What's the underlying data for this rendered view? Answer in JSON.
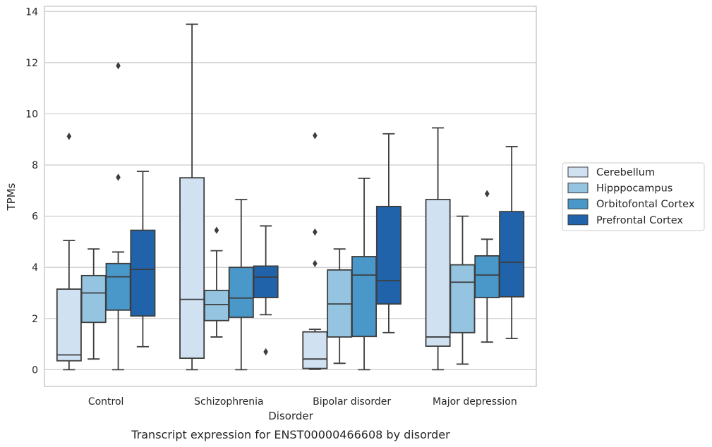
{
  "caption": "Transcript expression for ENST00000466608 by disorder",
  "chart_data": {
    "type": "box",
    "title": "",
    "xlabel": "Disorder",
    "ylabel": "TPMs",
    "ylim": [
      -0.65,
      14.2
    ],
    "yticks": [
      0,
      2,
      4,
      6,
      8,
      10,
      12,
      14
    ],
    "grid": "horizontal",
    "legend_position": "right",
    "categories": [
      "Control",
      "Schizophrenia",
      "Bipolar disorder",
      "Major depression"
    ],
    "series": [
      {
        "name": "Cerebellum",
        "color": "#d0e1f2",
        "boxes": [
          {
            "whisker_low": 0.0,
            "q1": 0.35,
            "median": 0.58,
            "q3": 3.15,
            "whisker_high": 5.05,
            "outliers": [
              9.12
            ]
          },
          {
            "whisker_low": 0.0,
            "q1": 0.45,
            "median": 2.75,
            "q3": 7.5,
            "whisker_high": 13.5,
            "outliers": []
          },
          {
            "whisker_low": 0.02,
            "q1": 0.05,
            "median": 0.42,
            "q3": 1.48,
            "whisker_high": 1.58,
            "outliers": [
              4.15,
              5.38,
              9.15
            ]
          },
          {
            "whisker_low": 0.0,
            "q1": 0.92,
            "median": 1.28,
            "q3": 6.65,
            "whisker_high": 9.45,
            "outliers": []
          }
        ]
      },
      {
        "name": "Hipppocampus",
        "color": "#94c4df",
        "boxes": [
          {
            "whisker_low": 0.42,
            "q1": 1.85,
            "median": 3.0,
            "q3": 3.68,
            "whisker_high": 4.72,
            "outliers": []
          },
          {
            "whisker_low": 1.28,
            "q1": 1.92,
            "median": 2.55,
            "q3": 3.1,
            "whisker_high": 4.65,
            "outliers": [
              5.45
            ]
          },
          {
            "whisker_low": 0.25,
            "q1": 1.28,
            "median": 2.57,
            "q3": 3.9,
            "whisker_high": 4.72,
            "outliers": []
          },
          {
            "whisker_low": 0.22,
            "q1": 1.45,
            "median": 3.42,
            "q3": 4.1,
            "whisker_high": 6.0,
            "outliers": []
          }
        ]
      },
      {
        "name": "Orbitofontal Cortex",
        "color": "#4a98c9",
        "boxes": [
          {
            "whisker_low": 0.0,
            "q1": 2.33,
            "median": 3.63,
            "q3": 4.15,
            "whisker_high": 4.6,
            "outliers": [
              7.52,
              11.88
            ]
          },
          {
            "whisker_low": 0.0,
            "q1": 2.05,
            "median": 2.8,
            "q3": 4.0,
            "whisker_high": 6.65,
            "outliers": []
          },
          {
            "whisker_low": 0.0,
            "q1": 1.3,
            "median": 3.7,
            "q3": 4.42,
            "whisker_high": 7.48,
            "outliers": []
          },
          {
            "whisker_low": 1.08,
            "q1": 2.82,
            "median": 3.7,
            "q3": 4.45,
            "whisker_high": 5.1,
            "outliers": [
              6.88
            ]
          }
        ]
      },
      {
        "name": "Prefrontal Cortex",
        "color": "#2163aa",
        "boxes": [
          {
            "whisker_low": 0.9,
            "q1": 2.1,
            "median": 3.92,
            "q3": 5.45,
            "whisker_high": 7.75,
            "outliers": []
          },
          {
            "whisker_low": 2.15,
            "q1": 2.82,
            "median": 3.62,
            "q3": 4.05,
            "whisker_high": 5.62,
            "outliers": [
              0.7
            ]
          },
          {
            "whisker_low": 1.45,
            "q1": 2.57,
            "median": 3.48,
            "q3": 6.38,
            "whisker_high": 9.22,
            "outliers": []
          },
          {
            "whisker_low": 1.22,
            "q1": 2.85,
            "median": 4.2,
            "q3": 6.18,
            "whisker_high": 8.72,
            "outliers": []
          }
        ]
      }
    ]
  }
}
